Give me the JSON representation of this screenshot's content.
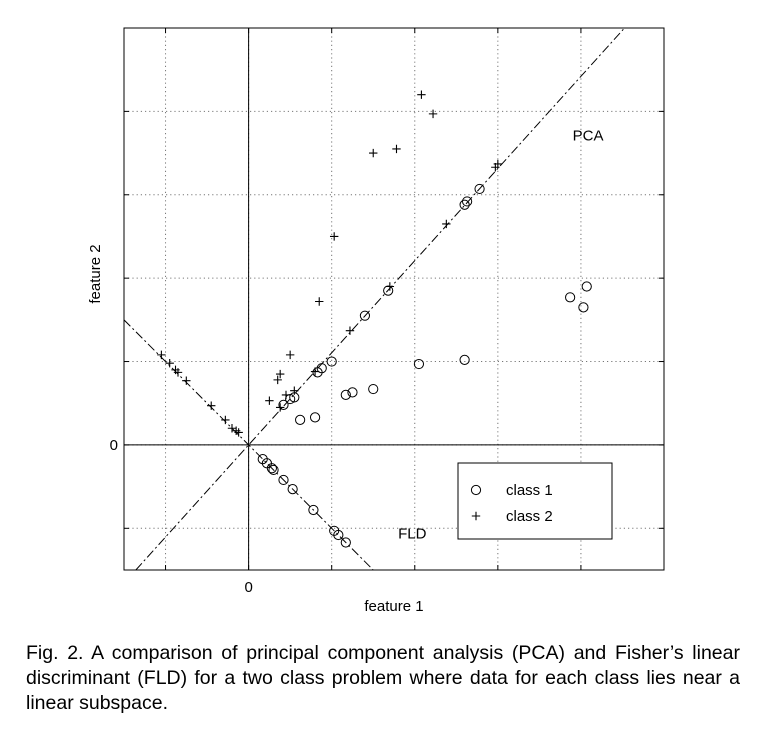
{
  "chart_data": {
    "type": "scatter",
    "title": "",
    "xlabel": "feature 1",
    "ylabel": "feature 2",
    "xlim": [
      -1.5,
      5
    ],
    "ylim": [
      -1.5,
      5
    ],
    "x_ticks": [
      -1,
      0,
      1,
      2,
      3,
      4
    ],
    "y_ticks": [
      -1,
      0,
      1,
      2,
      3,
      4
    ],
    "x_tick_labels": [
      {
        "value": 0,
        "label": "0"
      }
    ],
    "y_tick_labels": [
      {
        "value": 0,
        "label": "0"
      }
    ],
    "grid": true,
    "legend_position": "bottom-right",
    "series": [
      {
        "name": "class 1",
        "marker": "circle",
        "points": [
          [
            1.0,
            1.0
          ],
          [
            0.88,
            0.92
          ],
          [
            0.83,
            0.87
          ],
          [
            0.55,
            0.57
          ],
          [
            0.5,
            0.55
          ],
          [
            0.42,
            0.48
          ],
          [
            0.62,
            0.3
          ],
          [
            0.8,
            0.33
          ],
          [
            1.17,
            0.6
          ],
          [
            1.25,
            0.63
          ],
          [
            1.5,
            0.67
          ],
          [
            1.4,
            1.55
          ],
          [
            1.68,
            1.85
          ],
          [
            2.05,
            0.97
          ],
          [
            2.6,
            1.02
          ],
          [
            2.6,
            2.88
          ],
          [
            2.63,
            2.92
          ],
          [
            2.78,
            3.07
          ],
          [
            3.87,
            1.77
          ],
          [
            4.03,
            1.65
          ],
          [
            4.07,
            1.9
          ],
          [
            0.17,
            -0.17
          ],
          [
            0.22,
            -0.22
          ],
          [
            0.28,
            -0.28
          ],
          [
            0.3,
            -0.3
          ],
          [
            0.42,
            -0.42
          ],
          [
            0.53,
            -0.53
          ],
          [
            0.78,
            -0.78
          ],
          [
            1.03,
            -1.03
          ],
          [
            1.08,
            -1.08
          ],
          [
            1.17,
            -1.17
          ]
        ]
      },
      {
        "name": "class 2",
        "marker": "plus",
        "points": [
          [
            2.08,
            4.2
          ],
          [
            2.22,
            3.97
          ],
          [
            1.5,
            3.5
          ],
          [
            1.78,
            3.55
          ],
          [
            1.03,
            2.5
          ],
          [
            0.85,
            1.72
          ],
          [
            1.22,
            1.37
          ],
          [
            0.5,
            1.08
          ],
          [
            0.35,
            0.78
          ],
          [
            0.38,
            0.85
          ],
          [
            0.8,
            0.88
          ],
          [
            0.55,
            0.65
          ],
          [
            0.45,
            0.6
          ],
          [
            0.25,
            0.53
          ],
          [
            0.38,
            0.45
          ],
          [
            1.7,
            1.9
          ],
          [
            2.38,
            2.65
          ],
          [
            2.97,
            3.33
          ],
          [
            3.0,
            3.37
          ],
          [
            -1.05,
            1.08
          ],
          [
            -0.95,
            0.98
          ],
          [
            -0.88,
            0.9
          ],
          [
            -0.85,
            0.87
          ],
          [
            -0.75,
            0.77
          ],
          [
            -0.45,
            0.47
          ],
          [
            -0.28,
            0.3
          ],
          [
            -0.2,
            0.2
          ],
          [
            -0.15,
            0.17
          ],
          [
            -0.12,
            0.15
          ]
        ]
      }
    ],
    "lines": [
      {
        "label": "PCA",
        "style": "dash-dot",
        "slope": 1.105,
        "label_at": [
          3.9,
          3.65
        ]
      },
      {
        "label": "FLD",
        "style": "dash-dot",
        "slope": -1.0,
        "label_at": [
          1.8,
          -1.12
        ]
      }
    ],
    "legend": [
      {
        "marker": "circle",
        "label": "class 1"
      },
      {
        "marker": "plus",
        "label": "class 2"
      }
    ]
  },
  "caption": "Fig. 2. A comparison of principal component analysis (PCA) and Fisher’s linear discriminant (FLD) for a two class problem where data for each class lies near a linear subspace."
}
